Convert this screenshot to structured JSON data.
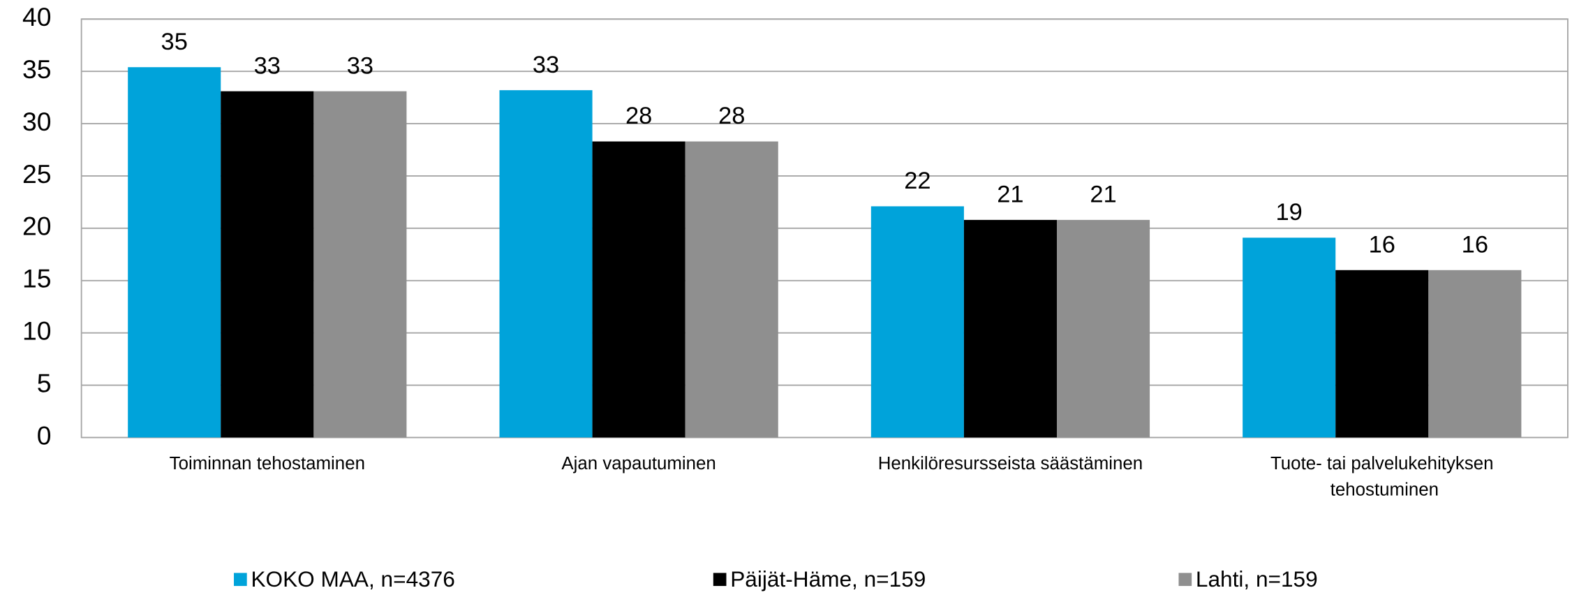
{
  "chart_data": {
    "type": "bar",
    "categories": [
      "Toiminnan tehostaminen",
      "Ajan vapautuminen",
      "Henkilöresursseista säästäminen",
      "Tuote- tai palvelukehityksen tehostuminen"
    ],
    "series": [
      {
        "name": "KOKO MAA, n=4376",
        "color": "#00a3da",
        "values": [
          35.4,
          33.2,
          22.1,
          19.1
        ],
        "value_labels": [
          "35",
          "33",
          "22",
          "19"
        ]
      },
      {
        "name": "Päijät-Häme, n=159",
        "color": "#000000",
        "values": [
          33.1,
          28.3,
          20.8,
          16.0
        ],
        "value_labels": [
          "33",
          "28",
          "21",
          "16"
        ]
      },
      {
        "name": "Lahti, n=159",
        "color": "#8f8f8f",
        "values": [
          33.1,
          28.3,
          20.8,
          16.0
        ],
        "value_labels": [
          "33",
          "28",
          "21",
          "16"
        ]
      }
    ],
    "ylim": [
      0,
      40
    ],
    "yticks": [
      0,
      5,
      10,
      15,
      20,
      25,
      30,
      35,
      40
    ],
    "grid": true,
    "legend": "bottom"
  }
}
